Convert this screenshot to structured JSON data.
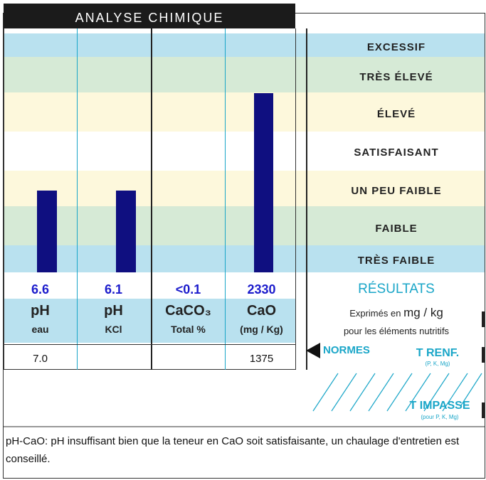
{
  "title": "ANALYSE CHIMIQUE",
  "levels": [
    "EXCESSIF",
    "TRÈS ÉLEVÉ",
    "ÉLEVÉ",
    "SATISFAISANT",
    "UN PEU FAIBLE",
    "FAIBLE",
    "TRÈS FAIBLE"
  ],
  "columns": [
    {
      "value": "6.6",
      "name": "pH",
      "sub": "eau",
      "norm": "7.0"
    },
    {
      "value": "6.1",
      "name": "pH",
      "sub": "KCl"
    },
    {
      "value": "<0.1",
      "name": "CaCO₃",
      "sub": "Total %"
    },
    {
      "value": "2330",
      "name": "CaO",
      "sub": "(mg / Kg)",
      "norm": "1375"
    }
  ],
  "results": {
    "title": "RÉSULTATS",
    "line1": "Exprimés en",
    "unit": "mg / kg",
    "line2": "pour les éléments nutritifs",
    "normes": "NORMES",
    "t_renf": "T RENF.",
    "t_renf_sub": "(P, K, Mg)",
    "t_impasse": "T IMPASSE",
    "t_impasse_sub": "(pour P, K, Mg)"
  },
  "comment": "pH-CaO: pH insuffisant bien que la teneur en CaO soit satisfaisante, un chaulage d'entretien est conseillé."
}
